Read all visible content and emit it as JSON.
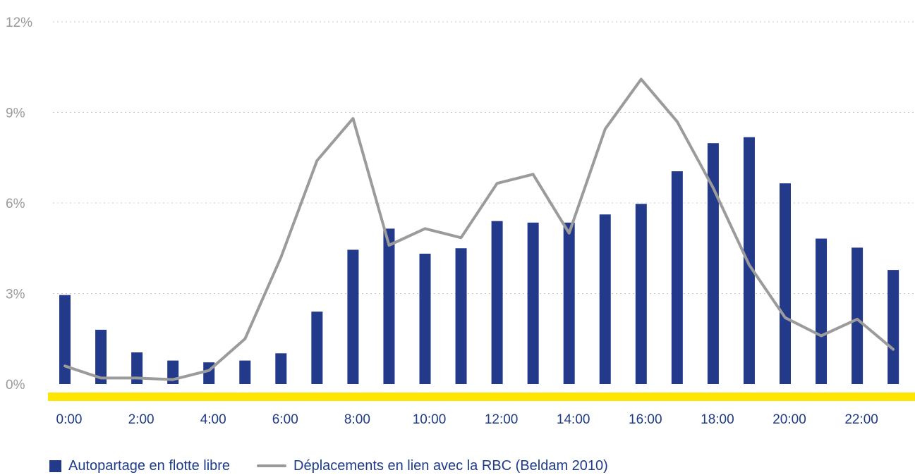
{
  "chart_data": {
    "type": "bar",
    "categories": [
      "0:00",
      "1:00",
      "2:00",
      "3:00",
      "4:00",
      "5:00",
      "6:00",
      "7:00",
      "8:00",
      "9:00",
      "10:00",
      "11:00",
      "12:00",
      "13:00",
      "14:00",
      "15:00",
      "16:00",
      "17:00",
      "18:00",
      "19:00",
      "20:00",
      "21:00",
      "22:00",
      "23:00"
    ],
    "x_tick_labels": [
      "0:00",
      "2:00",
      "4:00",
      "6:00",
      "8:00",
      "10:00",
      "12:00",
      "14:00",
      "16:00",
      "18:00",
      "20:00",
      "22:00"
    ],
    "y_tick_labels": [
      "0%",
      "3%",
      "6%",
      "9%",
      "12%"
    ],
    "y_ticks": [
      0,
      3,
      6,
      9,
      12
    ],
    "ylim": [
      0,
      12
    ],
    "grid": "horizontal dotted",
    "legend_position": "bottom-left",
    "series": [
      {
        "name": "Autopartage en flotte libre",
        "type": "bar",
        "color": "#233a8b",
        "values": [
          2.95,
          1.8,
          1.05,
          0.78,
          0.72,
          0.78,
          1.02,
          2.4,
          4.45,
          5.15,
          4.32,
          4.5,
          5.4,
          5.35,
          5.35,
          5.62,
          5.97,
          7.05,
          7.98,
          8.18,
          6.65,
          4.82,
          4.52,
          3.78
        ]
      },
      {
        "name": "Déplacements en lien avec la RBC (Beldam 2010)",
        "type": "line",
        "color": "#9b9b9b",
        "values": [
          0.6,
          0.2,
          0.2,
          0.15,
          0.45,
          1.5,
          4.2,
          7.4,
          8.8,
          4.6,
          5.15,
          4.85,
          6.65,
          6.95,
          5.0,
          8.45,
          10.1,
          8.7,
          6.5,
          3.95,
          2.2,
          1.6,
          2.15,
          1.15
        ]
      }
    ],
    "baseline_color": "#ffe600"
  },
  "legend": {
    "items": [
      {
        "label": "Autopartage en flotte libre"
      },
      {
        "label": "Déplacements en lien avec la RBC (Beldam 2010)"
      }
    ]
  }
}
